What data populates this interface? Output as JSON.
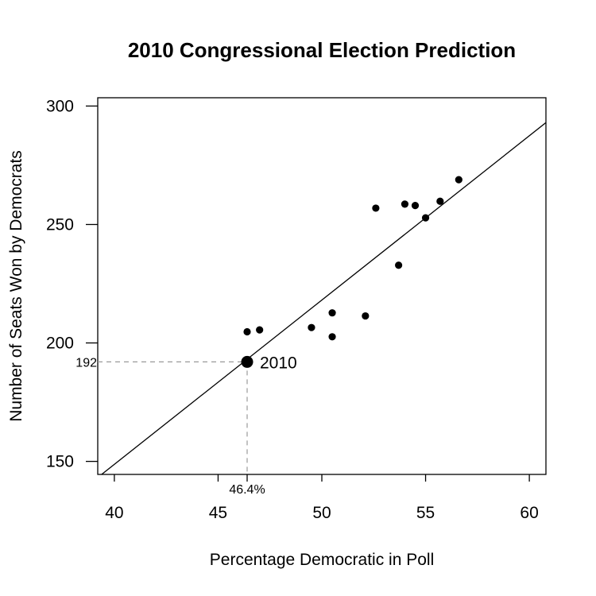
{
  "chart_data": {
    "type": "scatter",
    "title": "2010 Congressional Election Prediction",
    "xlabel": "Percentage Democratic in Poll",
    "ylabel": "Number of Seats Won by Democrats",
    "xlim": [
      39.2,
      60.8
    ],
    "ylim": [
      144.5,
      303.5
    ],
    "x_ticks": [
      40,
      45,
      50,
      55,
      60
    ],
    "y_ticks": [
      150,
      200,
      250,
      300
    ],
    "grid": false,
    "legend": "none",
    "points": [
      {
        "x": 46.4,
        "y": 204.7
      },
      {
        "x": 47.0,
        "y": 205.5
      },
      {
        "x": 49.5,
        "y": 206.5
      },
      {
        "x": 50.5,
        "y": 212.7
      },
      {
        "x": 50.5,
        "y": 202.6
      },
      {
        "x": 52.1,
        "y": 211.4
      },
      {
        "x": 52.6,
        "y": 256.9
      },
      {
        "x": 53.7,
        "y": 232.8
      },
      {
        "x": 54.0,
        "y": 258.6
      },
      {
        "x": 54.5,
        "y": 258.0
      },
      {
        "x": 55.0,
        "y": 252.8
      },
      {
        "x": 55.7,
        "y": 259.8
      },
      {
        "x": 56.6,
        "y": 268.9
      }
    ],
    "regression_line": {
      "x1": 39.2,
      "y1": 143.2,
      "x2": 60.8,
      "y2": 293.0
    },
    "highlight": {
      "x": 46.4,
      "y": 192,
      "label": "2010",
      "x_label": "46.4%",
      "y_label": "192"
    }
  }
}
